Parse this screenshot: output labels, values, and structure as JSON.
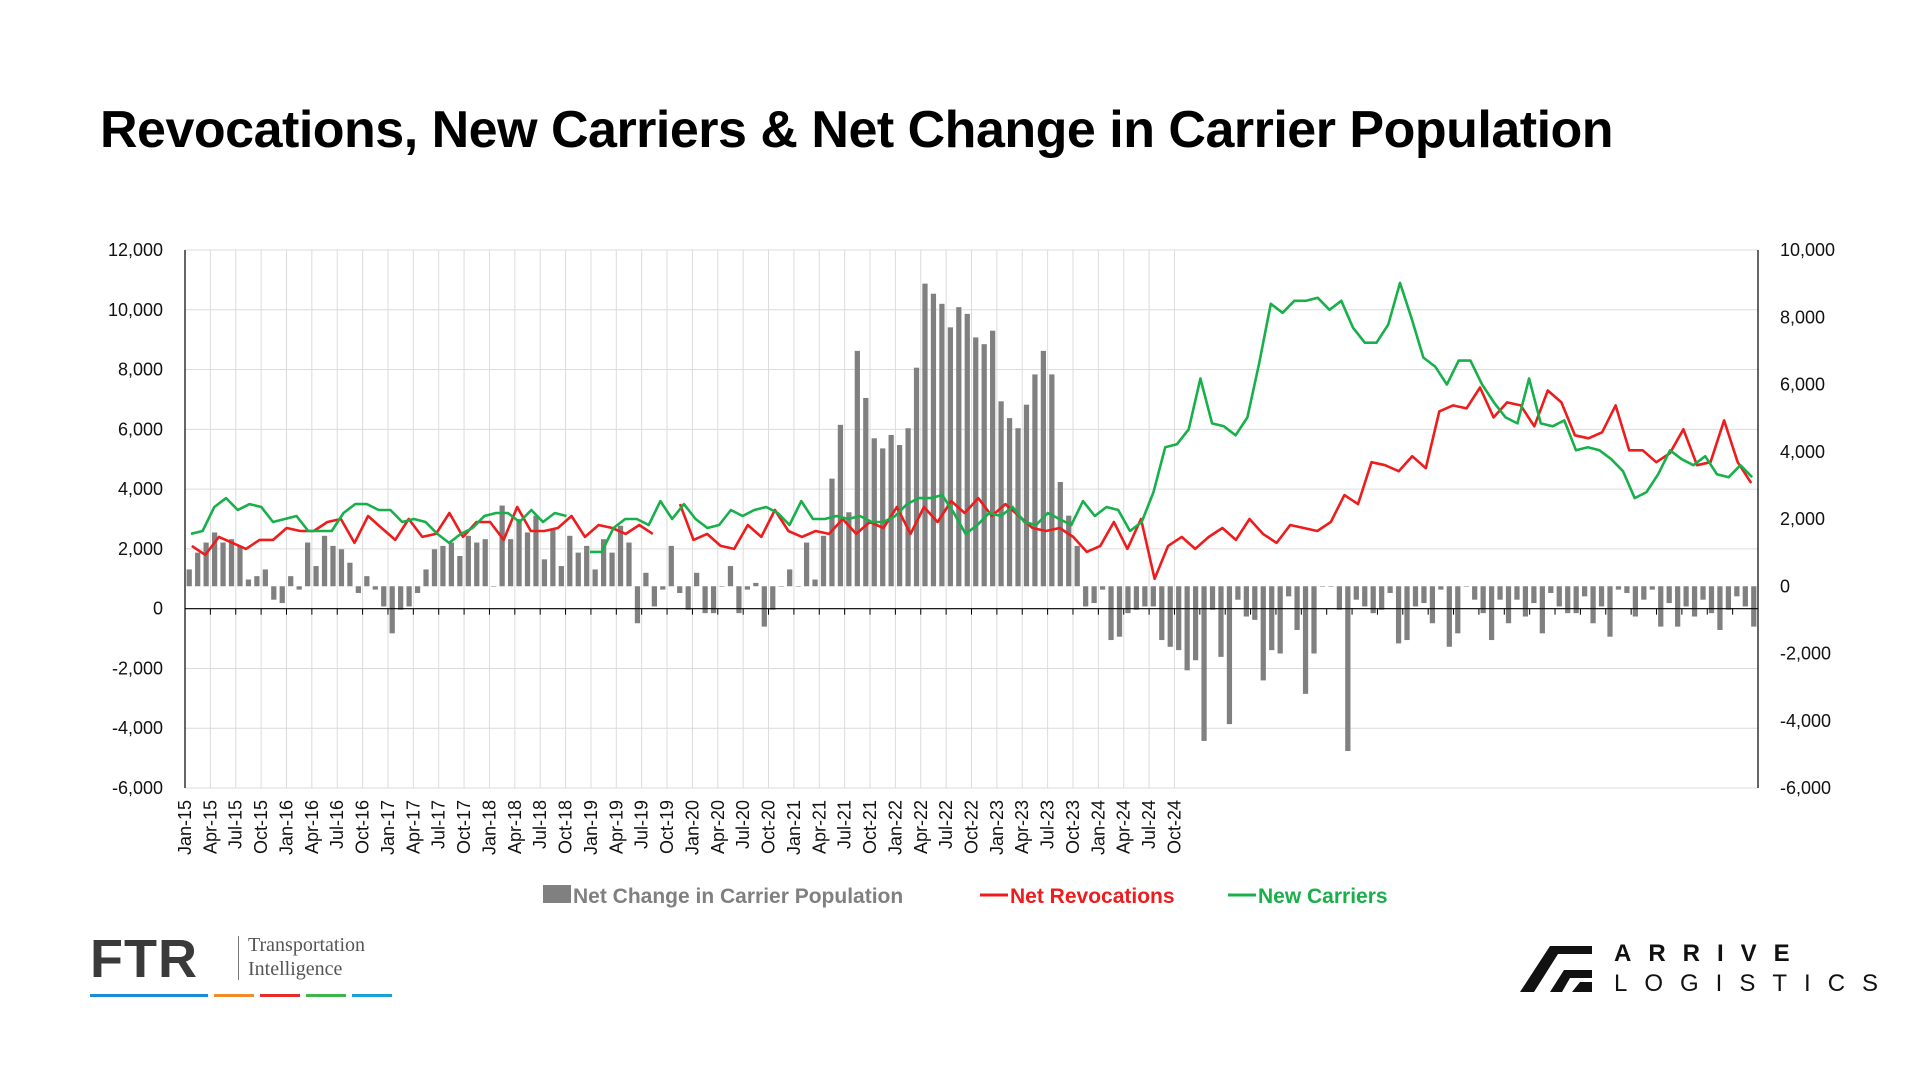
{
  "page": {
    "title": "Revocations, New Carriers & Net Change in Carrier Population"
  },
  "chart_data": {
    "type": "bar+line",
    "title": "Revocations, New Carriers & Net Change in Carrier Population",
    "left_axis": {
      "min": -6000,
      "max": 12000,
      "ticks": [
        "12,000",
        "10,000",
        "8,000",
        "6,000",
        "4,000",
        "2,000",
        "0",
        "-2,000",
        "-4,000",
        "-6,000"
      ]
    },
    "right_axis": {
      "min": -6000,
      "max": 10000,
      "ticks": [
        "10,000",
        "8,000",
        "6,000",
        "4,000",
        "2,000",
        "0",
        "-2,000",
        "-4,000",
        "-6,000"
      ]
    },
    "start_month": "2015-01",
    "x_tick_labels": [
      "Jan-15",
      "Apr-15",
      "Jul-15",
      "Oct-15",
      "Jan-16",
      "Apr-16",
      "Jul-16",
      "Oct-16",
      "Jan-17",
      "Apr-17",
      "Jul-17",
      "Oct-17",
      "Jan-18",
      "Apr-18",
      "Jul-18",
      "Oct-18",
      "Jan-19",
      "Apr-19",
      "Jul-19",
      "Oct-19",
      "Jan-20",
      "Apr-20",
      "Jul-20",
      "Oct-20",
      "Jan-21",
      "Apr-21",
      "Jul-21",
      "Oct-21",
      "Jan-22",
      "Apr-22",
      "Jul-22",
      "Oct-22",
      "Jan-23",
      "Apr-23",
      "Jul-23",
      "Oct-23",
      "Jan-24",
      "Apr-24",
      "Jul-24",
      "Oct-24"
    ],
    "grid": true,
    "legend_position": "bottom-center",
    "series": [
      {
        "name": "Net Change in Carrier Population",
        "type": "bar",
        "axis": "right",
        "color": "#808080",
        "values": [
          500,
          1000,
          1300,
          1600,
          1300,
          1400,
          1200,
          200,
          300,
          500,
          -400,
          -500,
          300,
          -100,
          1300,
          600,
          1500,
          1200,
          1100,
          700,
          -200,
          300,
          -100,
          -600,
          -1400,
          -700,
          -600,
          -200,
          500,
          1100,
          1200,
          1300,
          900,
          1500,
          1300,
          1400,
          0,
          2400,
          1400,
          2000,
          1600,
          2100,
          800,
          1700,
          600,
          1500,
          1000,
          1200,
          500,
          1400,
          1000,
          1800,
          1300,
          -1100,
          400,
          -600,
          -100,
          1200,
          -200,
          -700,
          400,
          -800,
          -800,
          0,
          600,
          -800,
          -100,
          100,
          -1200,
          -700,
          0,
          500,
          0,
          1300,
          200,
          1500,
          3200,
          4800,
          2200,
          7000,
          5600,
          4400,
          4100,
          4500,
          4200,
          4700,
          6500,
          9000,
          8700,
          8400,
          7700,
          8300,
          8100,
          7400,
          7200,
          7600,
          5500,
          5000,
          4700,
          5400,
          6300,
          7000,
          6300,
          3100,
          2100,
          1200,
          -600,
          -500,
          -100,
          -1600,
          -1500,
          -800,
          -700,
          -600,
          -600,
          -1600,
          -1800,
          -1900,
          -2500,
          -2200,
          -4600,
          -700,
          -2100,
          -4100,
          -400,
          -900,
          -1000,
          -2800,
          -1900,
          -2000,
          -300,
          -1300,
          -3200,
          -2000,
          0,
          0,
          -700,
          -4900,
          -400,
          -600,
          -800,
          -700,
          -200,
          -1700,
          -1600,
          -600,
          -500,
          -1100,
          -100,
          -1800,
          -1400,
          0,
          -400,
          -800,
          -1600,
          -400,
          -1100,
          -400,
          -900,
          -500,
          -1400,
          -200,
          -600,
          -800,
          -800,
          -300,
          -1100,
          -600,
          -1500,
          -100,
          -200,
          -900,
          -400,
          -100,
          -1200,
          -500,
          -1200,
          -600,
          -900,
          -400,
          -800,
          -1300,
          -700,
          -300,
          -600,
          -1200
        ]
      },
      {
        "name": "Net Revocations",
        "type": "line",
        "axis": "left",
        "color": "#ee1c1c",
        "values": [
          2100,
          1800,
          2400,
          2200,
          2000,
          2300,
          2300,
          2700,
          2600,
          2600,
          2900,
          3000,
          2200,
          3100,
          2700,
          2300,
          3000,
          2400,
          2500,
          3200,
          2400,
          2900,
          2900,
          2300,
          3400,
          2600,
          2600,
          2700,
          3100,
          2400,
          2800,
          2700,
          2500,
          2800,
          2500,
          null,
          3500,
          2300,
          2500,
          2100,
          2000,
          2800,
          2400,
          3300,
          2600,
          2400,
          2600,
          2500,
          3000,
          2500,
          2900,
          2700,
          3400,
          2500,
          3400,
          2900,
          3600,
          3200,
          3700,
          3100,
          3500,
          3100,
          2700,
          2600,
          2700,
          2400,
          1900,
          2100,
          2900,
          2000,
          3000,
          1000,
          2100,
          2400,
          2000,
          2400,
          2700,
          2300,
          3000,
          2500,
          2200,
          2800,
          2700,
          2600,
          2900,
          3800,
          3500,
          4900,
          4800,
          4600,
          5100,
          4700,
          6600,
          6800,
          6700,
          7400,
          6400,
          6900,
          6800,
          6100,
          7300,
          6900,
          5800,
          5700,
          5900,
          6800,
          5300,
          5300,
          4900,
          5200,
          6000,
          4800,
          4900,
          6300,
          4900,
          4200
        ]
      },
      {
        "name": "New Carriers",
        "type": "line",
        "axis": "left",
        "color": "#17b04a",
        "values": [
          2500,
          2600,
          3400,
          3700,
          3300,
          3500,
          3400,
          2900,
          3000,
          3100,
          2600,
          2600,
          2600,
          3200,
          3500,
          3500,
          3300,
          3300,
          2900,
          3000,
          2900,
          2500,
          2200,
          2500,
          2700,
          3100,
          3200,
          3200,
          2900,
          3300,
          2900,
          3200,
          3100,
          null,
          1900,
          1900,
          2700,
          3000,
          3000,
          2800,
          3600,
          3000,
          3500,
          3000,
          2700,
          2800,
          3300,
          3100,
          3300,
          3400,
          3200,
          2800,
          3600,
          3000,
          3000,
          3100,
          3000,
          3100,
          2900,
          2900,
          3100,
          3500,
          3700,
          3700,
          3800,
          3200,
          2500,
          2800,
          3200,
          3100,
          3400,
          2900,
          2800,
          3200,
          3000,
          2800,
          3600,
          3100,
          3400,
          3300,
          2600,
          2900,
          3900,
          5400,
          5500,
          6000,
          7700,
          6200,
          6100,
          5800,
          6400,
          8200,
          10200,
          9900,
          10300,
          10300,
          10400,
          10000,
          10300,
          9400,
          8900,
          8900,
          9500,
          10900,
          9700,
          8400,
          8100,
          7500,
          8300,
          8300,
          7500,
          6900,
          6400,
          6200,
          7700,
          6200,
          6100,
          6300,
          5300,
          5400,
          5300,
          5000,
          4600,
          3700,
          3900,
          4500,
          5300,
          5000,
          4800,
          5100,
          4500,
          4400,
          4800,
          4400
        ]
      }
    ]
  },
  "legend": [
    {
      "label": "Net Change in Carrier Population",
      "color": "#808080"
    },
    {
      "label": "Net Revocations",
      "color": "#ee1c1c"
    },
    {
      "label": "New Carriers",
      "color": "#17b04a"
    }
  ],
  "ftr_logo": {
    "wordmark": "FTR",
    "tagline_1": "Transportation",
    "tagline_2": "Intelligence",
    "stripe_colors": [
      "#1a8bd6",
      "#f28c28",
      "#e62b2b",
      "#3cb54a",
      "#1aa0d6"
    ]
  },
  "arrive_logo": {
    "line1": "ARRIVE",
    "line2": "LOGISTICS"
  }
}
